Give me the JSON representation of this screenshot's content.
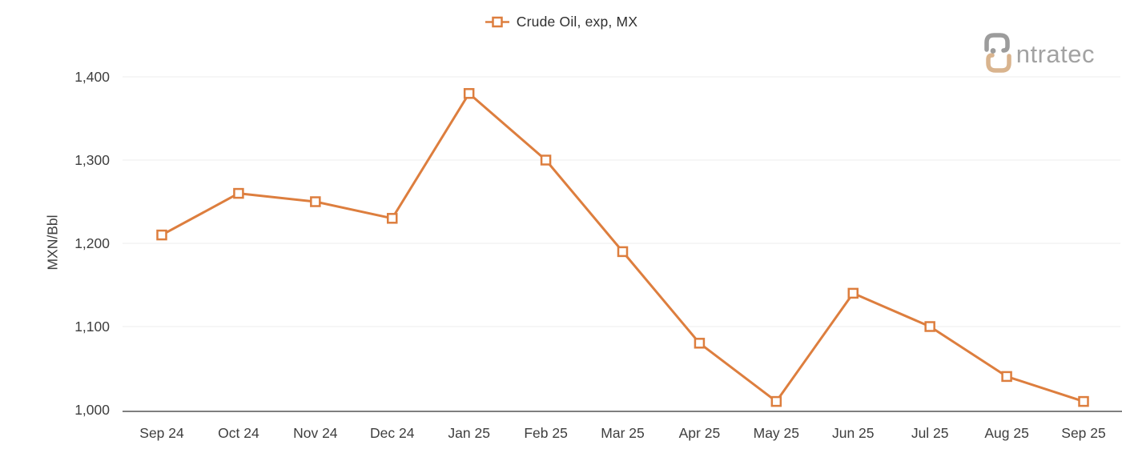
{
  "legend": {
    "label": "Crude Oil, exp, MX"
  },
  "logo": {
    "text": "ntratec"
  },
  "chart_data": {
    "type": "line",
    "title": "Crude Oil, exp, MX",
    "series_name": "Crude Oil, exp, MX",
    "ylabel": "MXN/Bbl",
    "categories": [
      "Sep 24",
      "Oct 24",
      "Nov 24",
      "Dec 24",
      "Jan 25",
      "Feb 25",
      "Mar 25",
      "Apr 25",
      "May 25",
      "Jun 25",
      "Jul 25",
      "Aug 25",
      "Sep 25"
    ],
    "values": [
      1210,
      1260,
      1250,
      1230,
      1380,
      1300,
      1190,
      1080,
      1010,
      1140,
      1100,
      1040,
      1010
    ],
    "ylim": [
      1000,
      1400
    ],
    "yticks": [
      1000,
      1100,
      1200,
      1300,
      1400
    ],
    "ytick_labels": [
      "1,000",
      "1,100",
      "1,200",
      "1,300",
      "1,400"
    ],
    "grid": "horizontal",
    "legend_position": "top-center",
    "marker": "open-square",
    "colors": {
      "line": "#DD7E3E",
      "marker_fill": "#FFFFFF",
      "grid": "#EDEDED",
      "axis": "#555555",
      "text": "#3E3E3E",
      "legend_text": "#2F2F2F",
      "logo_gray": "#9C9C9C",
      "logo_tan": "#D9B48E"
    }
  }
}
